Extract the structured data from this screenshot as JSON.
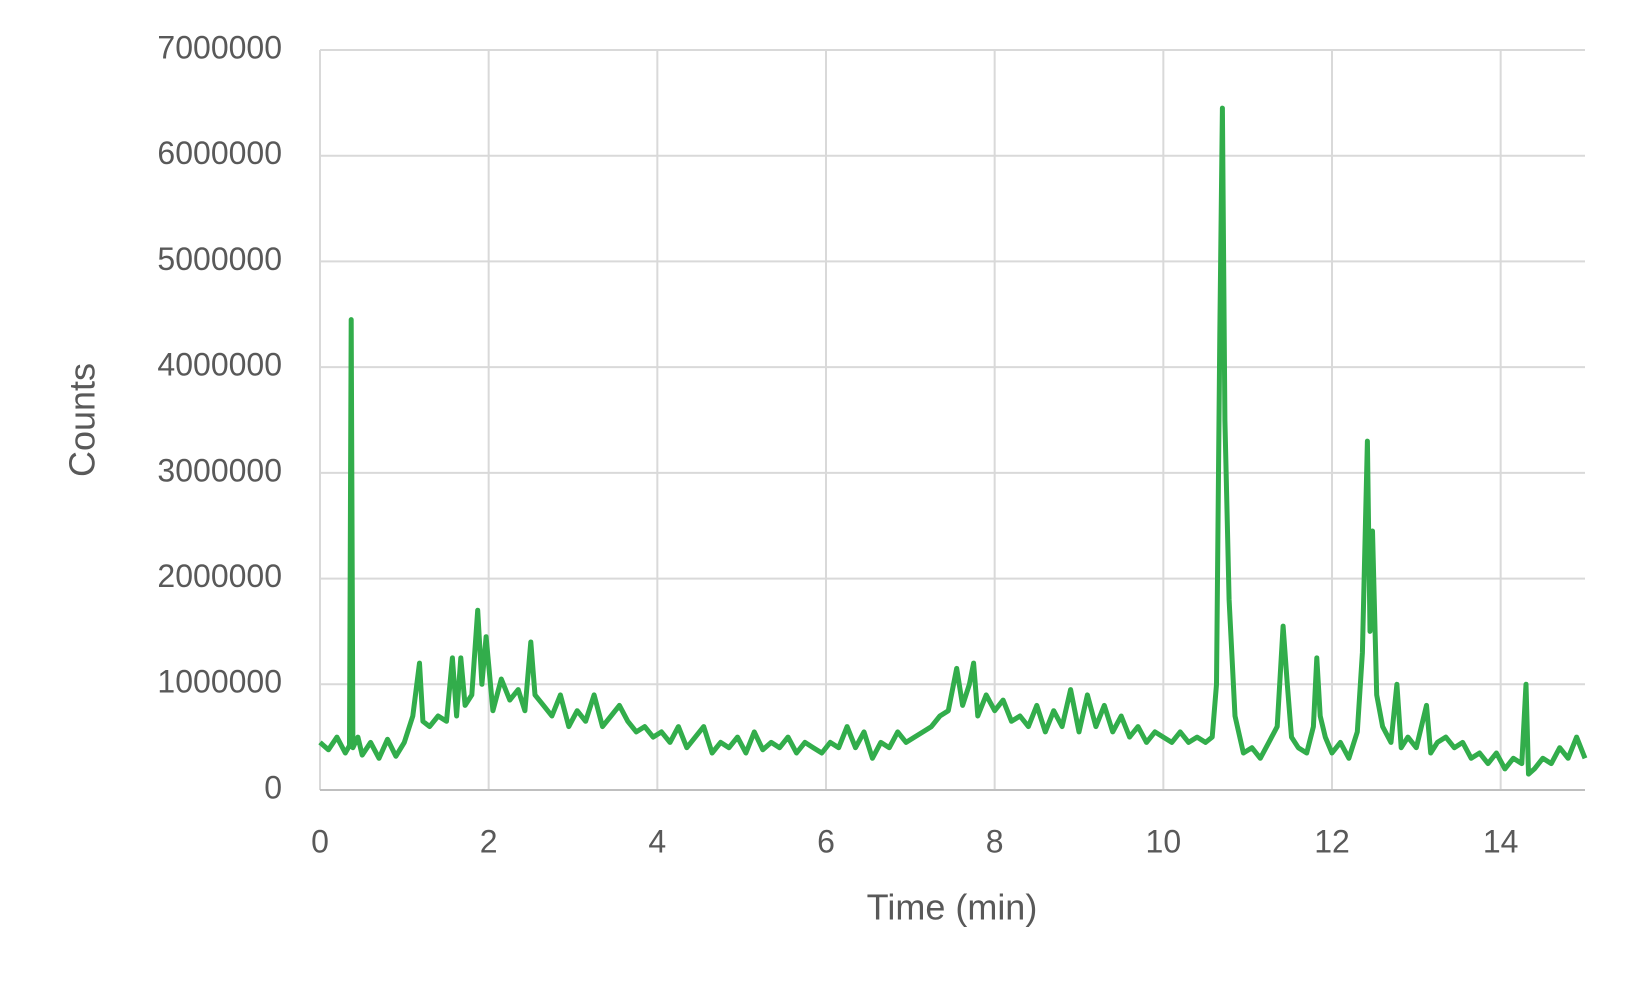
{
  "chart_data": {
    "type": "line",
    "x_label": "Time (min)",
    "y_label": "Counts",
    "color": "#32ad4b",
    "grid": true,
    "xlim": [
      0,
      15
    ],
    "xticks": [
      0,
      2,
      4,
      6,
      8,
      10,
      12,
      14
    ],
    "ylim": [
      0,
      7000000
    ],
    "yticks": [
      0,
      1000000,
      2000000,
      3000000,
      4000000,
      5000000,
      6000000,
      7000000
    ],
    "x": [
      0.0,
      0.1,
      0.2,
      0.3,
      0.35,
      0.37,
      0.39,
      0.45,
      0.5,
      0.6,
      0.7,
      0.8,
      0.9,
      1.0,
      1.1,
      1.18,
      1.22,
      1.3,
      1.4,
      1.5,
      1.57,
      1.62,
      1.67,
      1.72,
      1.8,
      1.87,
      1.92,
      1.97,
      2.05,
      2.15,
      2.25,
      2.35,
      2.43,
      2.5,
      2.55,
      2.65,
      2.75,
      2.85,
      2.95,
      3.05,
      3.15,
      3.25,
      3.35,
      3.45,
      3.55,
      3.65,
      3.75,
      3.85,
      3.95,
      4.05,
      4.15,
      4.25,
      4.35,
      4.45,
      4.55,
      4.65,
      4.75,
      4.85,
      4.95,
      5.05,
      5.15,
      5.25,
      5.35,
      5.45,
      5.55,
      5.65,
      5.75,
      5.85,
      5.95,
      6.05,
      6.15,
      6.25,
      6.35,
      6.45,
      6.55,
      6.65,
      6.75,
      6.85,
      6.95,
      7.05,
      7.15,
      7.25,
      7.35,
      7.45,
      7.55,
      7.62,
      7.7,
      7.75,
      7.8,
      7.9,
      8.0,
      8.1,
      8.2,
      8.3,
      8.4,
      8.5,
      8.6,
      8.7,
      8.8,
      8.9,
      9.0,
      9.1,
      9.2,
      9.3,
      9.4,
      9.5,
      9.6,
      9.7,
      9.8,
      9.9,
      10.0,
      10.1,
      10.2,
      10.3,
      10.4,
      10.5,
      10.58,
      10.63,
      10.67,
      10.7,
      10.73,
      10.78,
      10.85,
      10.95,
      11.05,
      11.15,
      11.25,
      11.35,
      11.42,
      11.47,
      11.52,
      11.6,
      11.7,
      11.78,
      11.82,
      11.86,
      11.92,
      12.0,
      12.1,
      12.2,
      12.3,
      12.36,
      12.42,
      12.45,
      12.48,
      12.53,
      12.6,
      12.7,
      12.77,
      12.82,
      12.9,
      13.0,
      13.12,
      13.17,
      13.25,
      13.35,
      13.45,
      13.55,
      13.65,
      13.75,
      13.85,
      13.95,
      14.05,
      14.15,
      14.25,
      14.3,
      14.33,
      14.4,
      14.5,
      14.6,
      14.7,
      14.8,
      14.9,
      15.0
    ],
    "values": [
      450000,
      380000,
      500000,
      350000,
      420000,
      4450000,
      400000,
      500000,
      330000,
      450000,
      300000,
      480000,
      320000,
      450000,
      700000,
      1200000,
      650000,
      600000,
      700000,
      650000,
      1250000,
      700000,
      1250000,
      800000,
      900000,
      1700000,
      1000000,
      1450000,
      750000,
      1050000,
      850000,
      950000,
      750000,
      1400000,
      900000,
      800000,
      700000,
      900000,
      600000,
      750000,
      650000,
      900000,
      600000,
      700000,
      800000,
      650000,
      550000,
      600000,
      500000,
      550000,
      450000,
      600000,
      400000,
      500000,
      600000,
      350000,
      450000,
      400000,
      500000,
      350000,
      550000,
      380000,
      450000,
      400000,
      500000,
      350000,
      450000,
      400000,
      350000,
      450000,
      400000,
      600000,
      400000,
      550000,
      300000,
      450000,
      400000,
      550000,
      450000,
      500000,
      550000,
      600000,
      700000,
      750000,
      1150000,
      800000,
      1000000,
      1200000,
      700000,
      900000,
      750000,
      850000,
      650000,
      700000,
      600000,
      800000,
      550000,
      750000,
      600000,
      950000,
      550000,
      900000,
      600000,
      800000,
      550000,
      700000,
      500000,
      600000,
      450000,
      550000,
      500000,
      450000,
      550000,
      450000,
      500000,
      450000,
      500000,
      1000000,
      4300000,
      6450000,
      3500000,
      1800000,
      700000,
      350000,
      400000,
      300000,
      450000,
      600000,
      1550000,
      1000000,
      500000,
      400000,
      350000,
      600000,
      1250000,
      700000,
      500000,
      350000,
      450000,
      300000,
      550000,
      1300000,
      3300000,
      1500000,
      2450000,
      900000,
      600000,
      450000,
      1000000,
      400000,
      500000,
      400000,
      800000,
      350000,
      450000,
      500000,
      400000,
      450000,
      300000,
      350000,
      250000,
      350000,
      200000,
      300000,
      250000,
      1000000,
      150000,
      200000,
      300000,
      250000,
      400000,
      300000,
      500000,
      300000
    ]
  }
}
